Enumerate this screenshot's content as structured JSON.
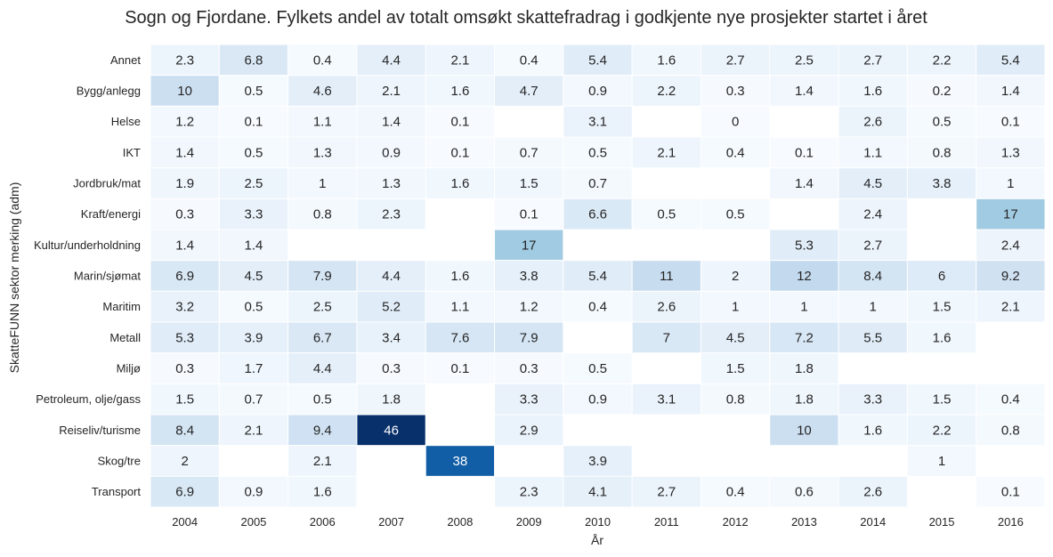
{
  "chart_data": {
    "type": "heatmap",
    "title": "Sogn og Fjordane. Fylkets andel av totalt omsøkt skattefradrag i godkjente nye prosjekter startet i året",
    "xlabel": "År",
    "ylabel": "SkatteFUNN sektor merking (adm)",
    "columns": [
      "2004",
      "2005",
      "2006",
      "2007",
      "2008",
      "2009",
      "2010",
      "2011",
      "2012",
      "2013",
      "2014",
      "2015",
      "2016"
    ],
    "rows": [
      "Annet",
      "Bygg/anlegg",
      "Helse",
      "IKT",
      "Jordbruk/mat",
      "Kraft/energi",
      "Kultur/underholdning",
      "Marin/sjømat",
      "Maritim",
      "Metall",
      "Miljø",
      "Petroleum, olje/gass",
      "Reiseliv/turisme",
      "Skog/tre",
      "Transport"
    ],
    "values": [
      [
        2.3,
        6.8,
        0.4,
        4.4,
        2.1,
        0.4,
        5.4,
        1.6,
        2.7,
        2.5,
        2.7,
        2.2,
        5.4
      ],
      [
        10,
        0.5,
        4.6,
        2.1,
        1.6,
        4.7,
        0.9,
        2.2,
        0.3,
        1.4,
        1.6,
        0.2,
        1.4
      ],
      [
        1.2,
        0.1,
        1.1,
        1.4,
        0.1,
        null,
        3.1,
        null,
        0,
        null,
        2.6,
        0.5,
        0.1
      ],
      [
        1.4,
        0.5,
        1.3,
        0.9,
        0.1,
        0.7,
        0.5,
        2.1,
        0.4,
        0.1,
        1.1,
        0.8,
        1.3
      ],
      [
        1.9,
        2.5,
        1,
        1.3,
        1.6,
        1.5,
        0.7,
        null,
        null,
        1.4,
        4.5,
        3.8,
        1
      ],
      [
        0.3,
        3.3,
        0.8,
        2.3,
        null,
        0.1,
        6.6,
        0.5,
        0.5,
        null,
        2.4,
        null,
        17
      ],
      [
        1.4,
        1.4,
        null,
        null,
        null,
        17,
        null,
        null,
        null,
        5.3,
        2.7,
        null,
        2.4
      ],
      [
        6.9,
        4.5,
        7.9,
        4.4,
        1.6,
        3.8,
        5.4,
        11,
        2,
        12,
        8.4,
        6,
        9.2
      ],
      [
        3.2,
        0.5,
        2.5,
        5.2,
        1.1,
        1.2,
        0.4,
        2.6,
        1,
        1,
        1,
        1.5,
        2.1
      ],
      [
        5.3,
        3.9,
        6.7,
        3.4,
        7.6,
        7.9,
        null,
        7,
        4.5,
        7.2,
        5.5,
        1.6,
        null
      ],
      [
        0.3,
        1.7,
        4.4,
        0.3,
        0.1,
        0.3,
        0.5,
        null,
        1.5,
        1.8,
        null,
        null,
        null
      ],
      [
        1.5,
        0.7,
        0.5,
        1.8,
        null,
        3.3,
        0.9,
        3.1,
        0.8,
        1.8,
        3.3,
        1.5,
        0.4
      ],
      [
        8.4,
        2.1,
        9.4,
        46,
        null,
        2.9,
        null,
        null,
        null,
        10,
        1.6,
        2.2,
        0.8
      ],
      [
        2,
        null,
        2.1,
        null,
        38,
        null,
        3.9,
        null,
        null,
        null,
        null,
        1,
        null
      ],
      [
        6.9,
        0.9,
        1.6,
        null,
        null,
        2.3,
        4.1,
        2.7,
        0.4,
        0.6,
        2.6,
        null,
        0.1
      ]
    ],
    "color_scale": "Blues",
    "vmin": 0,
    "vmax": 46
  }
}
